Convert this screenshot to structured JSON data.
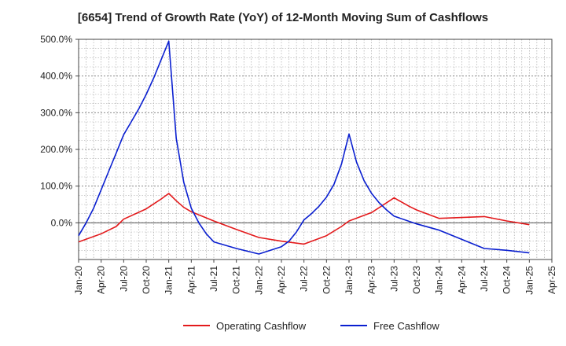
{
  "chart_data": {
    "type": "line",
    "title": "[6654]  Trend of Growth Rate (YoY) of 12-Month Moving Sum of Cashflows",
    "xlabel": "",
    "ylabel": "",
    "x_tick_labels": [
      "Jan-20",
      "Apr-20",
      "Jul-20",
      "Oct-20",
      "Jan-21",
      "Apr-21",
      "Jul-21",
      "Oct-21",
      "Jan-22",
      "Apr-22",
      "Jul-22",
      "Oct-22",
      "Jan-23",
      "Apr-23",
      "Jul-23",
      "Oct-23",
      "Jan-24",
      "Apr-24",
      "Jul-24",
      "Oct-24",
      "Jan-25",
      "Apr-25"
    ],
    "y_tick_values": [
      0,
      100,
      200,
      300,
      400,
      500
    ],
    "y_tick_labels": [
      "0.0%",
      "100.0%",
      "200.0%",
      "300.0%",
      "400.0%",
      "500.0%"
    ],
    "ylim": [
      -100,
      500
    ],
    "grid": true,
    "legend_position": "bottom",
    "series": [
      {
        "name": "Operating Cashflow",
        "color": "#e31a1c",
        "x": [
          "Jan-20",
          "Apr-20",
          "Jun-20",
          "Jul-20",
          "Oct-20",
          "Dec-20",
          "Jan-21",
          "Feb-21",
          "Mar-21",
          "Apr-21",
          "Jul-21",
          "Oct-21",
          "Jan-22",
          "Apr-22",
          "Jul-22",
          "Oct-22",
          "Dec-22",
          "Jan-23",
          "Apr-23",
          "Jul-23",
          "Sep-23",
          "Oct-23",
          "Jan-24",
          "Jul-24",
          "Oct-24",
          "Jan-25"
        ],
        "values": [
          -52,
          -30,
          -10,
          10,
          38,
          65,
          80,
          60,
          42,
          30,
          5,
          -18,
          -40,
          -50,
          -58,
          -35,
          -10,
          5,
          28,
          68,
          45,
          35,
          12,
          17,
          5,
          -5
        ]
      },
      {
        "name": "Free Cashflow",
        "color": "#0a1fd0",
        "x": [
          "Jan-20",
          "Feb-20",
          "Mar-20",
          "Apr-20",
          "May-20",
          "Jun-20",
          "Jul-20",
          "Aug-20",
          "Sep-20",
          "Oct-20",
          "Nov-20",
          "Dec-20",
          "Jan-21",
          "Feb-21",
          "Mar-21",
          "Apr-21",
          "May-21",
          "Jun-21",
          "Jul-21",
          "Oct-21",
          "Jan-22",
          "Apr-22",
          "May-22",
          "Jun-22",
          "Jul-22",
          "Aug-22",
          "Sep-22",
          "Oct-22",
          "Nov-22",
          "Dec-22",
          "Jan-23",
          "Feb-23",
          "Mar-23",
          "Apr-23",
          "May-23",
          "Jun-23",
          "Jul-23",
          "Oct-23",
          "Jan-24",
          "Jul-24",
          "Oct-24",
          "Jan-25"
        ],
        "values": [
          -35,
          0,
          40,
          90,
          140,
          190,
          240,
          275,
          310,
          350,
          395,
          445,
          495,
          230,
          110,
          40,
          0,
          -30,
          -52,
          -70,
          -85,
          -65,
          -50,
          -25,
          8,
          25,
          45,
          70,
          105,
          160,
          242,
          165,
          115,
          80,
          55,
          35,
          18,
          -3,
          -20,
          -70,
          -75,
          -82
        ]
      }
    ]
  }
}
